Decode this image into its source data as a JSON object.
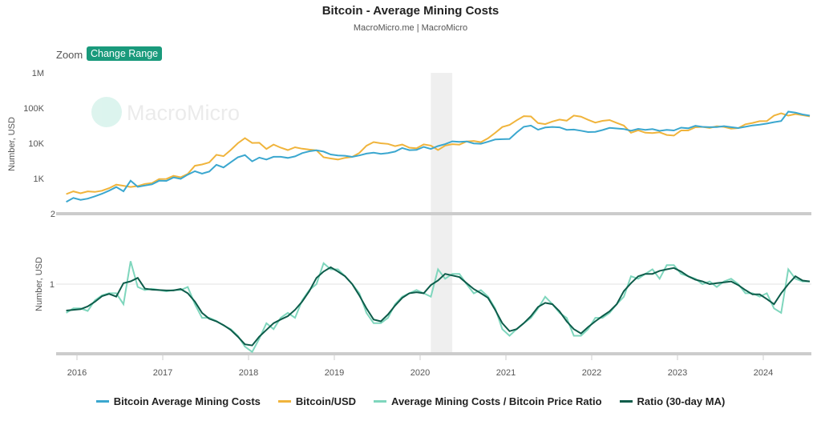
{
  "header": {
    "title": "Bitcoin - Average Mining Costs",
    "subtitle": "MacroMicro.me | MacroMicro",
    "zoom_label": "Zoom",
    "change_range_label": "Change Range",
    "watermark": "MacroMicro"
  },
  "chart_data": [
    {
      "type": "line",
      "ylabel": "Number, USD",
      "yscale": "log",
      "ylim": [
        2,
        1000000
      ],
      "yticks": [
        "1M",
        "100K",
        "10K",
        "1K",
        "2"
      ],
      "start": "2015-11",
      "series": [
        {
          "name": "Bitcoin Average Mining Costs",
          "color": "#3ba7cf",
          "values": [
            216,
            280,
            247,
            267,
            311,
            369,
            451,
            570,
            434,
            863,
            580,
            630,
            681,
            864,
            854,
            1071,
            972,
            1283,
            1610,
            1375,
            1579,
            2444,
            2064,
            2880,
            4000,
            4620,
            3060,
            3914,
            3450,
            4140,
            4125,
            3840,
            4235,
            5250,
            5940,
            6300,
            5800,
            4810,
            4485,
            4428,
            4100,
            4505,
            5100,
            5400,
            5000,
            5280,
            5810,
            7360,
            6375,
            6480,
            7905,
            6880,
            8320,
            9460,
            11340,
            10968,
            11300,
            9900,
            9700,
            11040,
            12800,
            13050,
            13240,
            20250,
            29400,
            31735,
            24245,
            28000,
            29050,
            28260,
            24090,
            24520,
            22800,
            20835,
            21175,
            23760,
            27300,
            26390,
            25440,
            22770,
            25630,
            24000,
            25220,
            22550,
            24080,
            23100,
            27720,
            26565,
            31350,
            29300,
            28560,
            28975,
            30660,
            28600,
            27000,
            29325,
            32045,
            33840,
            36210,
            39780,
            42780,
            78910,
            74250,
            65835,
            60900
          ]
        },
        {
          "name": "Bitcoin/USD",
          "color": "#f0b43c",
          "values": [
            360,
            430,
            380,
            430,
            415,
            450,
            530,
            670,
            620,
            575,
            610,
            700,
            740,
            960,
            970,
            1190,
            1080,
            1350,
            2300,
            2500,
            2870,
            4700,
            4300,
            6400,
            10000,
            14000,
            10200,
            10300,
            6900,
            9200,
            7500,
            6400,
            7700,
            7000,
            6600,
            6300,
            4000,
            3700,
            3450,
            3850,
            4100,
            5300,
            8500,
            10800,
            10000,
            9600,
            8300,
            9200,
            7500,
            7200,
            9300,
            8600,
            6400,
            8600,
            9450,
            9140,
            11300,
            11650,
            10780,
            13800,
            19700,
            29000,
            33100,
            45000,
            58800,
            57700,
            37300,
            35000,
            41500,
            47100,
            43800,
            61300,
            57000,
            46300,
            38500,
            43200,
            45500,
            37700,
            31800,
            19800,
            23300,
            20000,
            19400,
            20500,
            17200,
            16500,
            23100,
            23100,
            28500,
            29300,
            27200,
            30500,
            29200,
            26000,
            27000,
            34500,
            37700,
            42300,
            42600,
            61200,
            71300,
            60700,
            67500,
            62700,
            58000
          ]
        }
      ]
    },
    {
      "type": "line",
      "ylabel": "Number, USD",
      "yscale": "log",
      "yticks": [
        "1"
      ],
      "xticks": [
        "2016",
        "2017",
        "2018",
        "2019",
        "2020",
        "2021",
        "2022",
        "2023",
        "2024"
      ],
      "series": [
        {
          "name": "Average Mining Costs / Bitcoin Price Ratio",
          "color": "#7fd6bd",
          "derived": "cost/price"
        },
        {
          "name": "Ratio (30-day MA)",
          "color": "#0d5c4a"
        }
      ]
    }
  ],
  "shaded_period": [
    "2020-02",
    "2020-05"
  ]
}
